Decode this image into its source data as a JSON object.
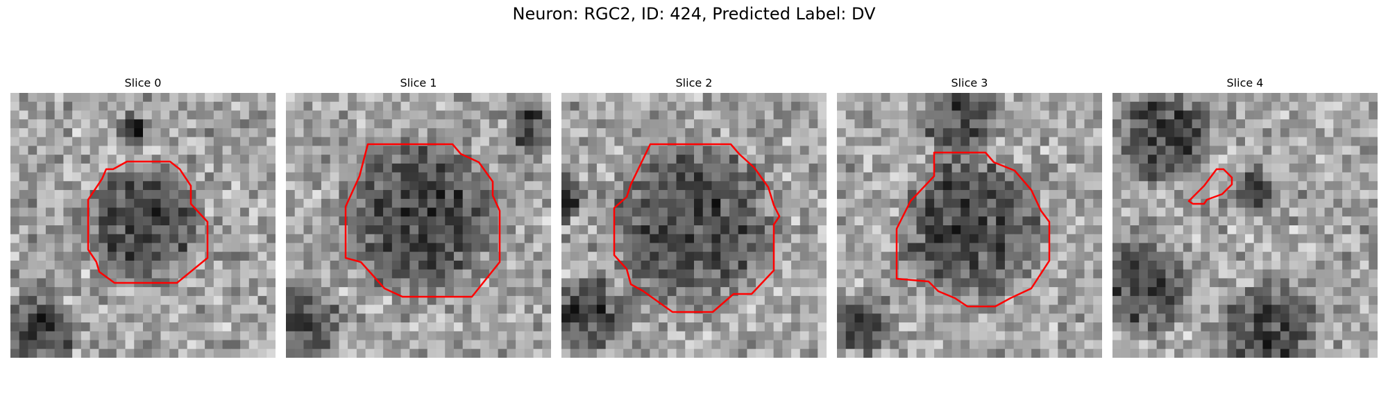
{
  "figure": {
    "title": "Neuron: RGC2, ID: 424, Predicted Label: DV"
  },
  "outline_color": "#ff0000",
  "slices": [
    {
      "title": "Slice 0",
      "seed": 11,
      "dark_blob": true
    },
    {
      "title": "Slice 1",
      "seed": 23,
      "dark_blob": true
    },
    {
      "title": "Slice 2",
      "seed": 37,
      "dark_blob": true
    },
    {
      "title": "Slice 3",
      "seed": 41,
      "dark_blob": true
    },
    {
      "title": "Slice 4",
      "seed": 59,
      "dark_blob": false
    }
  ]
}
